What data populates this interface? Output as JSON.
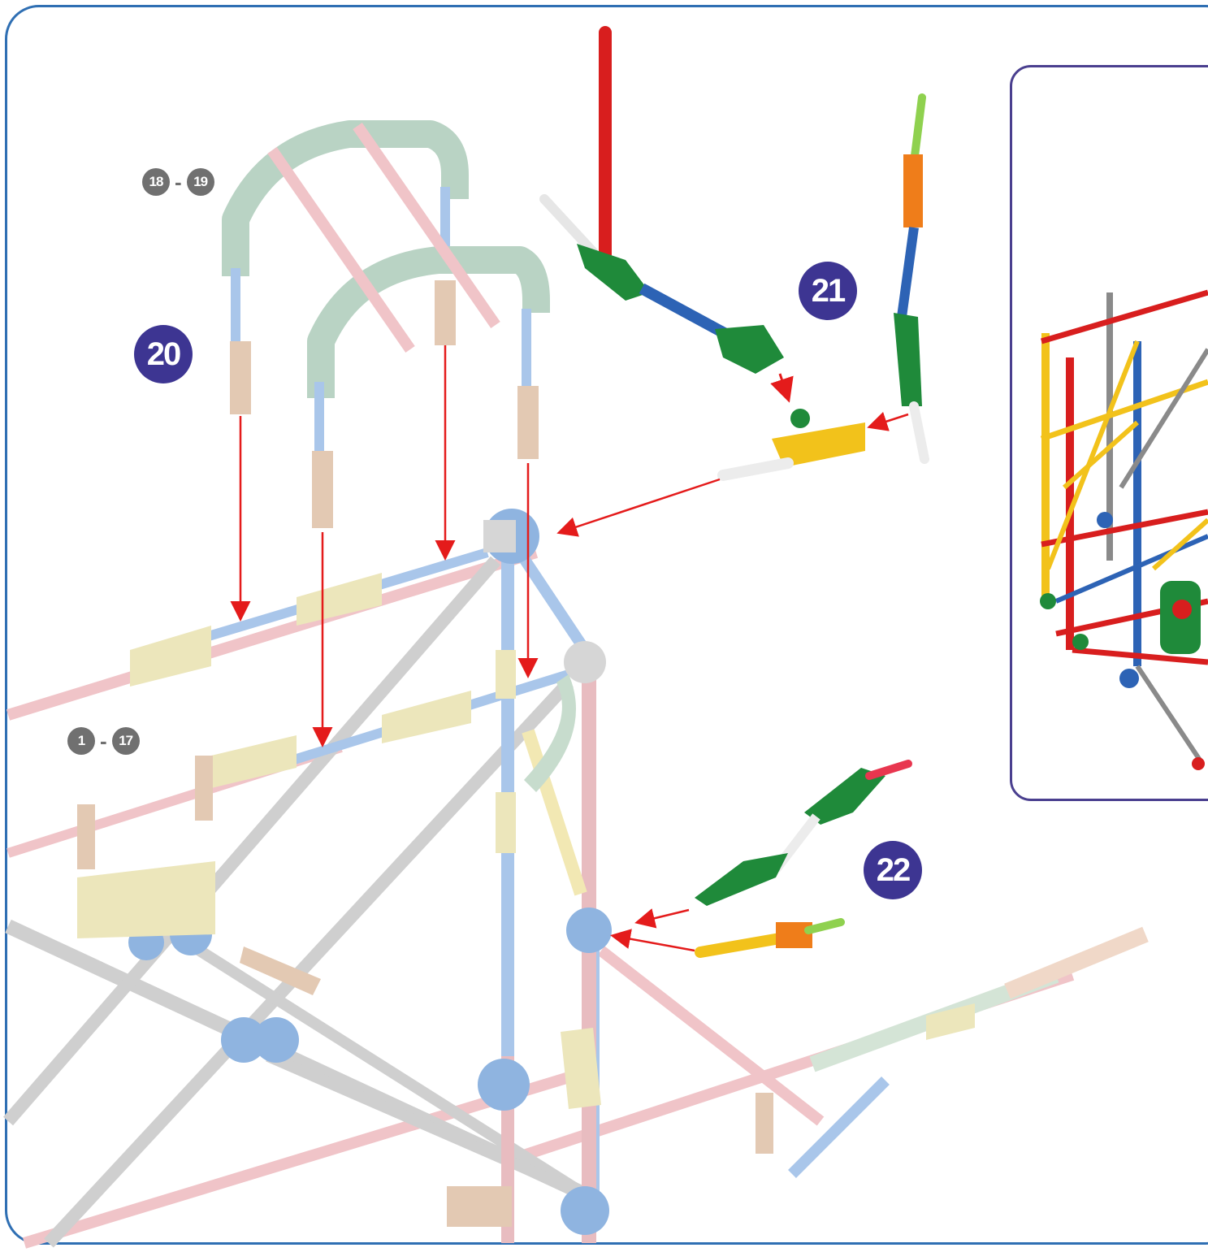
{
  "steps": {
    "range_top": {
      "from": "18",
      "sep": "-",
      "to": "19"
    },
    "range_bottom": {
      "from": "1",
      "sep": "-",
      "to": "17"
    },
    "step_20": "20",
    "step_21": "21",
    "step_22": "22"
  },
  "colors": {
    "frame_border": "#2f6fb3",
    "inset_border": "#4a3f8f",
    "step_badge": "#3d3592",
    "range_badge": "#707070",
    "arrow": "#e41b1b",
    "rod_red": "#d81e1e",
    "rod_blue": "#2d63b5",
    "rod_light_blue": "#a9c6ea",
    "rod_pink": "#f0c4c8",
    "rod_grey": "#cfcfcf",
    "connector_green": "#1f8a3a",
    "connector_yellow": "#f2c21b",
    "connector_pale_green": "#c7dccd",
    "connector_beige": "#ece6bb",
    "connector_light_blue": "#8fb4e0",
    "rod_orange": "#ef7d1a",
    "rod_lime": "#8fd14f"
  }
}
